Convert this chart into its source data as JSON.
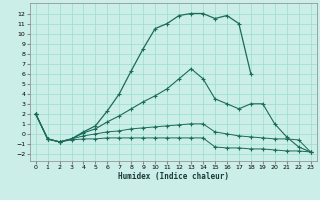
{
  "xlabel": "Humidex (Indice chaleur)",
  "background_color": "#cceee8",
  "grid_color": "#99ddcc",
  "line_color": "#1a6b5a",
  "xlim": [
    -0.5,
    23.5
  ],
  "ylim": [
    -2.7,
    13.0
  ],
  "yticks": [
    -2,
    -1,
    0,
    1,
    2,
    3,
    4,
    5,
    6,
    7,
    8,
    9,
    10,
    11,
    12
  ],
  "xticks": [
    0,
    1,
    2,
    3,
    4,
    5,
    6,
    7,
    8,
    9,
    10,
    11,
    12,
    13,
    14,
    15,
    16,
    17,
    18,
    19,
    20,
    21,
    22,
    23
  ],
  "curve1_x": [
    0,
    1,
    2,
    3,
    4,
    5,
    6,
    7,
    8,
    9,
    10,
    11,
    12,
    13,
    14,
    15,
    16,
    17,
    18,
    19,
    20,
    21,
    22,
    23
  ],
  "curve1_y": [
    2.0,
    -0.5,
    -0.8,
    -0.6,
    -0.5,
    -0.5,
    -0.4,
    -0.4,
    -0.4,
    -0.4,
    -0.4,
    -0.4,
    -0.4,
    -0.4,
    -0.4,
    -1.3,
    -1.4,
    -1.4,
    -1.5,
    -1.5,
    -1.6,
    -1.7,
    -1.7,
    -1.8
  ],
  "curve2_x": [
    0,
    1,
    2,
    3,
    4,
    5,
    6,
    7,
    8,
    9,
    10,
    11,
    12,
    13,
    14,
    15,
    16,
    17,
    18,
    19,
    20,
    21,
    22,
    23
  ],
  "curve2_y": [
    2.0,
    -0.5,
    -0.8,
    -0.5,
    -0.2,
    0.0,
    0.2,
    0.3,
    0.5,
    0.6,
    0.7,
    0.8,
    0.9,
    1.0,
    1.0,
    0.2,
    0.0,
    -0.2,
    -0.3,
    -0.4,
    -0.5,
    -0.5,
    -0.6,
    -1.8
  ],
  "curve3_x": [
    0,
    1,
    2,
    3,
    4,
    5,
    6,
    7,
    8,
    9,
    10,
    11,
    12,
    13,
    14,
    15,
    16,
    17,
    18,
    19,
    20,
    21,
    22,
    23
  ],
  "curve3_y": [
    2.0,
    -0.5,
    -0.8,
    -0.5,
    0.1,
    0.5,
    1.2,
    1.8,
    2.5,
    3.2,
    3.8,
    4.5,
    5.5,
    6.5,
    5.5,
    3.5,
    3.0,
    2.5,
    3.0,
    3.0,
    1.0,
    -0.3,
    -1.3,
    -1.8
  ],
  "curve4_x": [
    0,
    1,
    2,
    3,
    4,
    5,
    6,
    7,
    8,
    9,
    10,
    11,
    12,
    13,
    14,
    15,
    16,
    17,
    18
  ],
  "curve4_y": [
    2.0,
    -0.5,
    -0.8,
    -0.5,
    0.2,
    0.8,
    2.3,
    4.0,
    6.3,
    8.5,
    10.5,
    11.0,
    11.8,
    12.0,
    12.0,
    11.5,
    11.8,
    11.0,
    6.0
  ]
}
